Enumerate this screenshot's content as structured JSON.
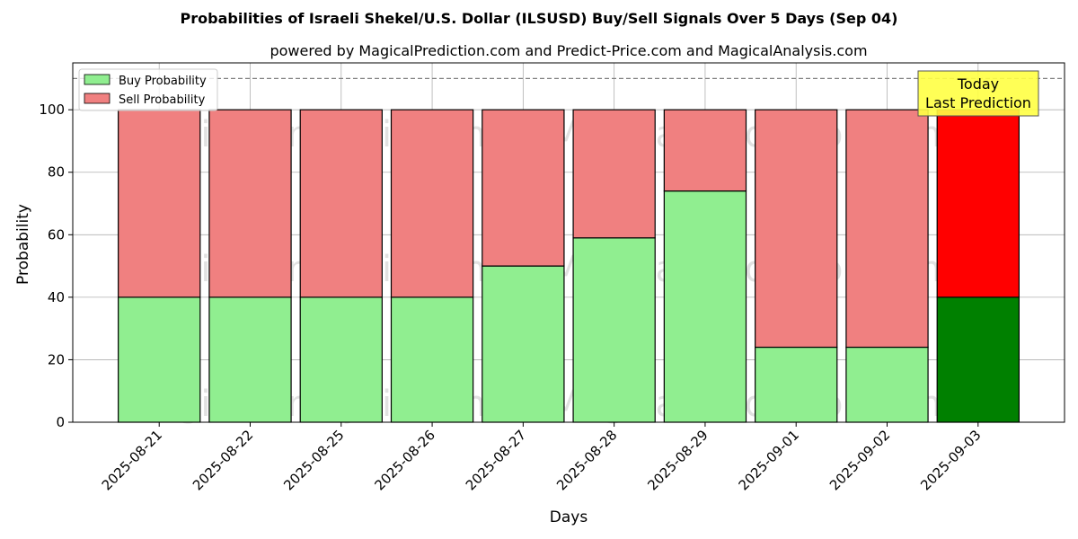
{
  "chart_data": {
    "type": "bar",
    "stacked": true,
    "title": "Probabilities of Israeli Shekel/U.S. Dollar (ILSUSD) Buy/Sell Signals Over 5 Days (Sep 04)",
    "subtitle": "powered by MagicalPrediction.com and Predict-Price.com and MagicalAnalysis.com",
    "xlabel": "Days",
    "ylabel": "Probability",
    "ylim": [
      0,
      115
    ],
    "yticks": [
      0,
      20,
      40,
      60,
      80,
      100
    ],
    "grid": true,
    "legend_position": "top-left",
    "reference_line": 110,
    "categories": [
      "2025-08-21",
      "2025-08-22",
      "2025-08-25",
      "2025-08-26",
      "2025-08-27",
      "2025-08-28",
      "2025-08-29",
      "2025-09-01",
      "2025-09-02",
      "2025-09-03"
    ],
    "series": [
      {
        "name": "Buy Probability",
        "values": [
          40,
          40,
          40,
          40,
          50,
          59,
          74,
          24,
          24,
          40
        ],
        "color": "#90ee90",
        "highlight_color": "#008000"
      },
      {
        "name": "Sell Probability",
        "values": [
          60,
          60,
          60,
          60,
          50,
          41,
          26,
          76,
          76,
          60
        ],
        "color": "#f08080",
        "highlight_color": "#ff0000"
      }
    ],
    "highlight_index": 9,
    "annotation": {
      "line1": "Today",
      "line2": "Last Prediction",
      "background": "#ffff44"
    },
    "watermarks": [
      "MagicalAnalysis.com",
      "MagicalPrediction.com"
    ]
  }
}
